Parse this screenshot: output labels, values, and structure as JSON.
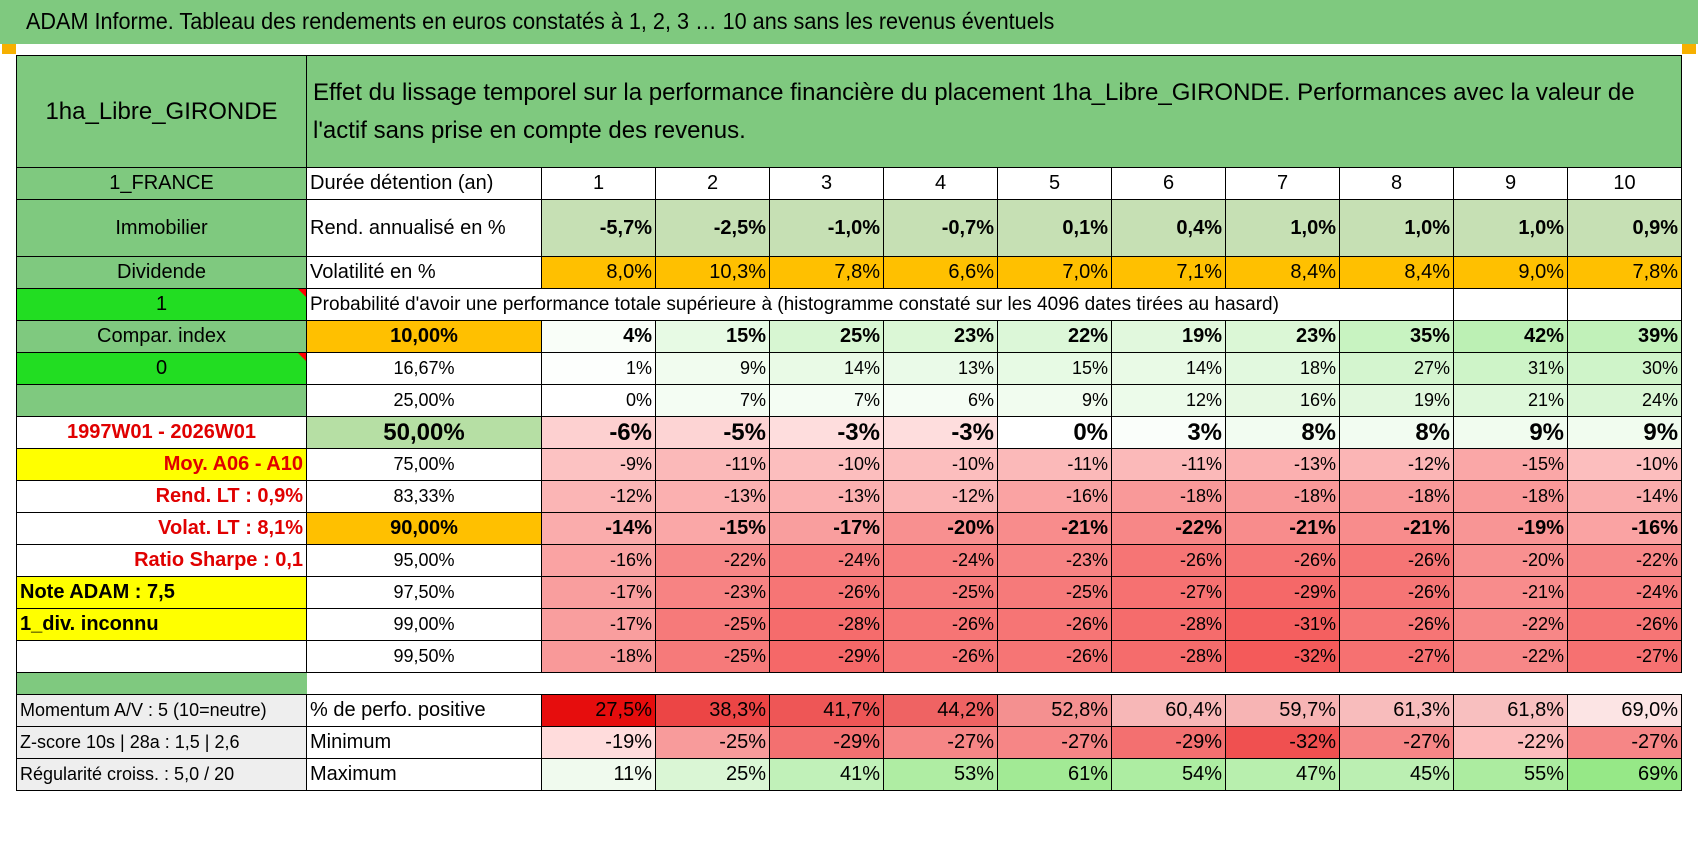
{
  "title": "ADAM Informe. Tableau des rendements en euros constatés à 1, 2, 3 … 10 ans sans les revenus éventuels",
  "colors": {
    "green": "#7fc97f",
    "bright_green": "#22dd22",
    "orange": "#ffc000",
    "yellow": "#ffff00",
    "red_text": "#e00000"
  },
  "placement": "1ha_Libre_GIRONDE",
  "description": "Effet du lissage temporel sur la performance financière du placement 1ha_Libre_GIRONDE. Performances avec la valeur de l'actif sans prise en compte des revenus.",
  "side": {
    "country": "1_FRANCE",
    "category": "Immobilier",
    "dividend_label": "Dividende",
    "dividend_value": "1",
    "compar_label": "Compar. index",
    "compar_value": "0",
    "period": "1997W01 - 2026W01",
    "moy": "Moy. A06 - A10",
    "rend_lt": "Rend. LT :    0,9%",
    "volat_lt": "Volat. LT :    8,1%",
    "sharpe": "Ratio Sharpe :     0,1",
    "note": "Note ADAM : 7,5",
    "div": "1_div. inconnu",
    "momentum": "Momentum A/V : 5 (10=neutre)",
    "zscore": "Z-score 10s | 28a : 1,5 | 2,6",
    "regularite": "Régularité croiss. : 5,0 / 20"
  },
  "row_labels": {
    "duree": "Durée détention (an)",
    "rend": "Rend. annualisé en %",
    "volat": "Volatilité en %",
    "proba": "Probabilité d'avoir une performance totale supérieure à (histogramme constaté sur les 4096 dates tirées au hasard)",
    "perfo_pos": "% de perfo. positive",
    "minimum": "Minimum",
    "maximum": "Maximum"
  },
  "years": [
    "1",
    "2",
    "3",
    "4",
    "5",
    "6",
    "7",
    "8",
    "9",
    "10"
  ],
  "rend": [
    "-5,7%",
    "-2,5%",
    "-1,0%",
    "-0,7%",
    "0,1%",
    "0,4%",
    "1,0%",
    "1,0%",
    "1,0%",
    "0,9%"
  ],
  "volat": [
    "8,0%",
    "10,3%",
    "7,8%",
    "6,6%",
    "7,0%",
    "7,1%",
    "8,4%",
    "8,4%",
    "9,0%",
    "7,8%"
  ],
  "quantiles": [
    {
      "q": "10,00%",
      "values": [
        "4%",
        "15%",
        "25%",
        "23%",
        "22%",
        "19%",
        "23%",
        "35%",
        "42%",
        "39%"
      ]
    },
    {
      "q": "16,67%",
      "values": [
        "1%",
        "9%",
        "14%",
        "13%",
        "15%",
        "14%",
        "18%",
        "27%",
        "31%",
        "30%"
      ]
    },
    {
      "q": "25,00%",
      "values": [
        "0%",
        "7%",
        "7%",
        "6%",
        "9%",
        "12%",
        "16%",
        "19%",
        "21%",
        "24%"
      ]
    },
    {
      "q": "50,00%",
      "values": [
        "-6%",
        "-5%",
        "-3%",
        "-3%",
        "0%",
        "3%",
        "8%",
        "8%",
        "9%",
        "9%"
      ]
    },
    {
      "q": "75,00%",
      "values": [
        "-9%",
        "-11%",
        "-10%",
        "-10%",
        "-11%",
        "-11%",
        "-13%",
        "-12%",
        "-15%",
        "-10%"
      ]
    },
    {
      "q": "83,33%",
      "values": [
        "-12%",
        "-13%",
        "-13%",
        "-12%",
        "-16%",
        "-18%",
        "-18%",
        "-18%",
        "-18%",
        "-14%"
      ]
    },
    {
      "q": "90,00%",
      "values": [
        "-14%",
        "-15%",
        "-17%",
        "-20%",
        "-21%",
        "-22%",
        "-21%",
        "-21%",
        "-19%",
        "-16%"
      ]
    },
    {
      "q": "95,00%",
      "values": [
        "-16%",
        "-22%",
        "-24%",
        "-24%",
        "-23%",
        "-26%",
        "-26%",
        "-26%",
        "-20%",
        "-22%"
      ]
    },
    {
      "q": "97,50%",
      "values": [
        "-17%",
        "-23%",
        "-26%",
        "-25%",
        "-25%",
        "-27%",
        "-29%",
        "-26%",
        "-21%",
        "-24%"
      ]
    },
    {
      "q": "99,00%",
      "values": [
        "-17%",
        "-25%",
        "-28%",
        "-26%",
        "-26%",
        "-28%",
        "-31%",
        "-26%",
        "-22%",
        "-26%"
      ]
    },
    {
      "q": "99,50%",
      "values": [
        "-18%",
        "-25%",
        "-29%",
        "-26%",
        "-26%",
        "-28%",
        "-32%",
        "-27%",
        "-22%",
        "-27%"
      ]
    }
  ],
  "perfo_pos": [
    "27,5%",
    "38,3%",
    "41,7%",
    "44,2%",
    "52,8%",
    "60,4%",
    "59,7%",
    "61,3%",
    "61,8%",
    "69,0%"
  ],
  "minimum": [
    "-19%",
    "-25%",
    "-29%",
    "-27%",
    "-27%",
    "-29%",
    "-32%",
    "-27%",
    "-22%",
    "-27%"
  ],
  "maximum": [
    "11%",
    "25%",
    "41%",
    "53%",
    "61%",
    "54%",
    "47%",
    "45%",
    "55%",
    "69%"
  ]
}
